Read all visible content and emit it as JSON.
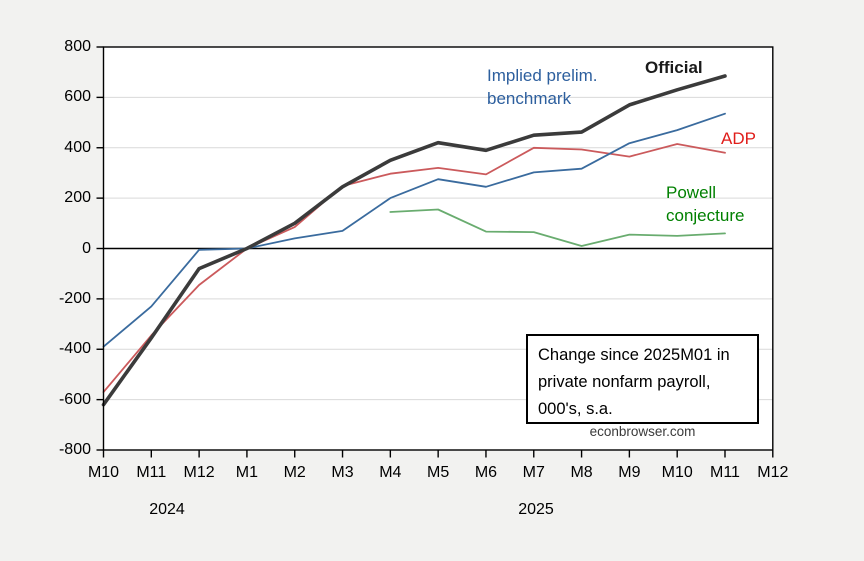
{
  "chart_data": {
    "type": "line",
    "title": "Change since 2025M01 in private nonfarm payroll, 000's, s.a.",
    "source": "econbrowser.com",
    "x_axis": {
      "month_labels": [
        "M10",
        "M11",
        "M12",
        "M1",
        "M2",
        "M3",
        "M4",
        "M5",
        "M6",
        "M7",
        "M8",
        "M9",
        "M10",
        "M11",
        "M12"
      ],
      "year_labels": [
        "2024",
        "2025"
      ]
    },
    "y_axis": {
      "tick_labels": [
        "800",
        "600",
        "400",
        "200",
        "0",
        "-200",
        "-400",
        "-600",
        "-800"
      ],
      "tick_values": [
        800,
        600,
        400,
        200,
        0,
        -200,
        -400,
        -600,
        -800
      ],
      "ylim": [
        -800,
        800
      ],
      "grid": "horizontal-light, zero-line-black"
    },
    "series": [
      {
        "name": "ADP",
        "color": "#cb5a5c",
        "width": 1.8,
        "values": [
          -570,
          -345,
          -145,
          0,
          85,
          248,
          297,
          320,
          294,
          400,
          393,
          365,
          415,
          380
        ]
      },
      {
        "name": "Powell conjecture",
        "color": "#69ac6f",
        "width": 1.8,
        "values": [
          null,
          null,
          null,
          null,
          null,
          null,
          145,
          155,
          67,
          65,
          10,
          55,
          50,
          60
        ]
      },
      {
        "name": "Implied prelim. benchmark",
        "color": "#3a6b9e",
        "width": 1.8,
        "values": [
          -390,
          -230,
          -5,
          0,
          40,
          70,
          200,
          275,
          245,
          302,
          317,
          418,
          470,
          535
        ]
      },
      {
        "name": "Official",
        "color": "#3b3b3b",
        "width": 3.6,
        "values": [
          -620,
          -355,
          -80,
          0,
          100,
          245,
          350,
          420,
          390,
          450,
          462,
          570,
          630,
          685
        ]
      }
    ],
    "legend_position": "inline labels beside lines"
  },
  "annotations": {
    "benchmark_label": {
      "line1": "Implied prelim.",
      "line2": "benchmark",
      "color": "#2d5f9e"
    },
    "official_label": {
      "text": "Official",
      "color": "#1a1a1a"
    },
    "adp_label": {
      "text": "ADP",
      "color": "#e01d1a"
    },
    "powell_label": {
      "line1": "Powell",
      "line2": "conjecture",
      "color": "#008000"
    },
    "info_box": {
      "line1": "Change since 2025M01 in",
      "line2": "private nonfarm payroll,",
      "line3": "000's, s.a."
    },
    "watermark": "econbrowser.com"
  }
}
